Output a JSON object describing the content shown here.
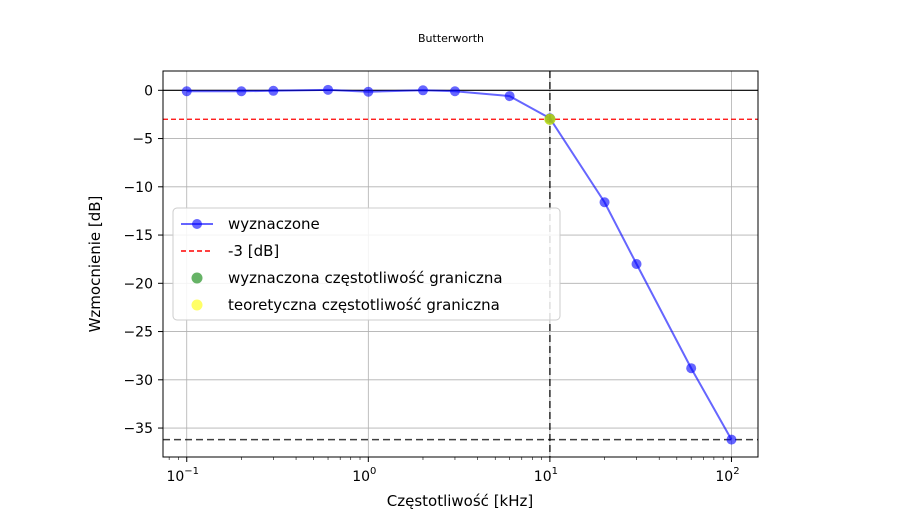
{
  "chart_data": {
    "type": "line",
    "title": "Butterworth",
    "xlabel": "Częstotliwość [kHz]",
    "ylabel": "Wzmocnienie [dB]",
    "xscale": "log",
    "xlim": [
      0.074,
      140
    ],
    "ylim": [
      -38,
      2
    ],
    "grid": true,
    "x_ticks": [
      {
        "value": 0.1,
        "base": "10",
        "exp": "−1"
      },
      {
        "value": 1,
        "base": "10",
        "exp": "0"
      },
      {
        "value": 10,
        "base": "10",
        "exp": "1"
      },
      {
        "value": 100,
        "base": "10",
        "exp": "2"
      }
    ],
    "y_ticks": [
      {
        "value": 0,
        "label": "0"
      },
      {
        "value": -5,
        "label": "−5"
      },
      {
        "value": -10,
        "label": "−10"
      },
      {
        "value": -15,
        "label": "−15"
      },
      {
        "value": -20,
        "label": "−20"
      },
      {
        "value": -25,
        "label": "−25"
      },
      {
        "value": -30,
        "label": "−30"
      },
      {
        "value": -35,
        "label": "−35"
      }
    ],
    "series": [
      {
        "name": "wyznaczone",
        "kind": "line-markers",
        "color": "#0000ff",
        "x": [
          0.1,
          0.2,
          0.3,
          0.6,
          1,
          2,
          3,
          6,
          10,
          20,
          30,
          60,
          100
        ],
        "y": [
          -0.1,
          -0.1,
          -0.05,
          0.05,
          -0.15,
          0.0,
          -0.1,
          -0.6,
          -2.9,
          -11.6,
          -18.0,
          -28.8,
          -36.2
        ]
      }
    ],
    "reference_lines": [
      {
        "name": "-3 [dB]",
        "orientation": "horizontal",
        "value": -3,
        "color": "#ff0000",
        "style": "dashed"
      },
      {
        "orientation": "horizontal",
        "value": 0,
        "color": "#000000",
        "style": "solid"
      },
      {
        "orientation": "vertical",
        "value": 10,
        "color": "#000000",
        "style": "dashed"
      },
      {
        "orientation": "horizontal",
        "value": -36.2,
        "color": "#000000",
        "style": "dashed"
      }
    ],
    "points": [
      {
        "name": "wyznaczona częstotliwość graniczna",
        "x": 10,
        "y": -3,
        "color": "#008000"
      },
      {
        "name": "teoretyczna częstotliwość graniczna",
        "x": 10,
        "y": -3,
        "color": "#ffff00"
      }
    ],
    "legend": {
      "position": "center-left",
      "entries": [
        {
          "label": "wyznaczone",
          "symbol": "line-marker",
          "color": "#0000ff"
        },
        {
          "label": "-3 [dB]",
          "symbol": "dashed-line",
          "color": "#ff0000"
        },
        {
          "label": "wyznaczona częstotliwość graniczna",
          "symbol": "marker",
          "color": "#008000"
        },
        {
          "label": "teoretyczna częstotliwość graniczna",
          "symbol": "marker",
          "color": "#ffff00"
        }
      ]
    }
  }
}
